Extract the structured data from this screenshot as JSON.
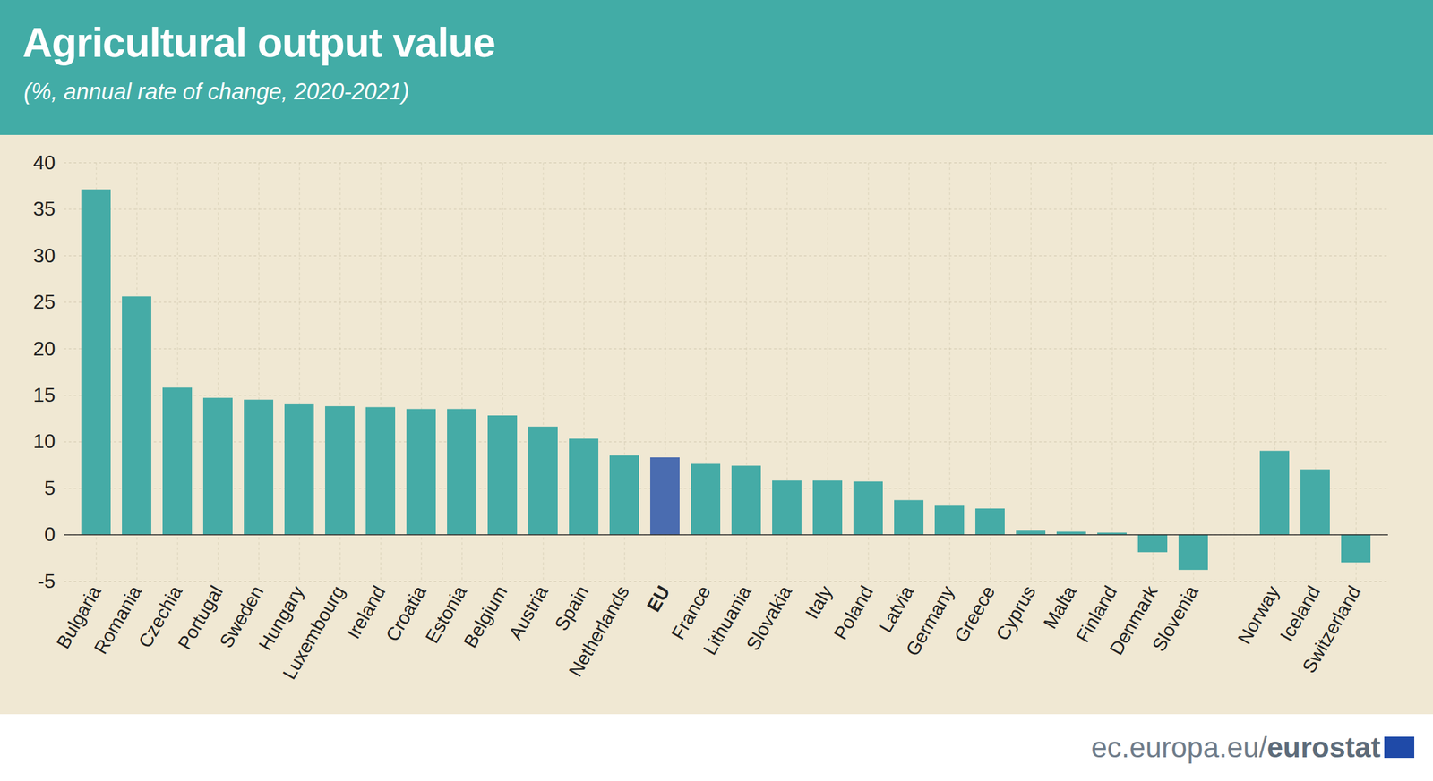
{
  "chart_data": {
    "type": "bar",
    "title": "Agricultural output value",
    "subtitle": "(%, annual rate of change, 2020-2021)",
    "source": "ec.europa.eu/eurostat",
    "categories": [
      "Bulgaria",
      "Romania",
      "Czechia",
      "Portugal",
      "Sweden",
      "Hungary",
      "Luxembourg",
      "Ireland",
      "Croatia",
      "Estonia",
      "Belgium",
      "Austria",
      "Spain",
      "Netherlands",
      "EU",
      "France",
      "Lithuania",
      "Slovakia",
      "Italy",
      "Poland",
      "Latvia",
      "Germany",
      "Greece",
      "Cyprus",
      "Malta",
      "Finland",
      "Denmark",
      "Slovenia",
      null,
      "Norway",
      "Iceland",
      "Switzerland"
    ],
    "values": [
      37.1,
      25.6,
      15.8,
      14.7,
      14.5,
      14.0,
      13.8,
      13.7,
      13.5,
      13.5,
      12.8,
      11.6,
      10.3,
      8.5,
      8.3,
      7.6,
      7.4,
      5.8,
      5.8,
      5.7,
      3.7,
      3.1,
      2.8,
      0.5,
      0.3,
      0.2,
      -1.9,
      -3.8,
      null,
      9.0,
      7.0,
      -3.0
    ],
    "colors": [
      "#45aba6",
      "#45aba6",
      "#45aba6",
      "#45aba6",
      "#45aba6",
      "#45aba6",
      "#45aba6",
      "#45aba6",
      "#45aba6",
      "#45aba6",
      "#45aba6",
      "#45aba6",
      "#45aba6",
      "#45aba6",
      "#4a6cb0",
      "#45aba6",
      "#45aba6",
      "#45aba6",
      "#45aba6",
      "#45aba6",
      "#45aba6",
      "#45aba6",
      "#45aba6",
      "#45aba6",
      "#45aba6",
      "#45aba6",
      "#45aba6",
      "#45aba6",
      "#45aba6",
      "#45aba6",
      "#45aba6",
      "#45aba6"
    ],
    "ylim": [
      -5,
      40
    ],
    "yticks": [
      -5,
      0,
      5,
      10,
      15,
      20,
      25,
      30,
      35,
      40
    ],
    "grid": true
  }
}
